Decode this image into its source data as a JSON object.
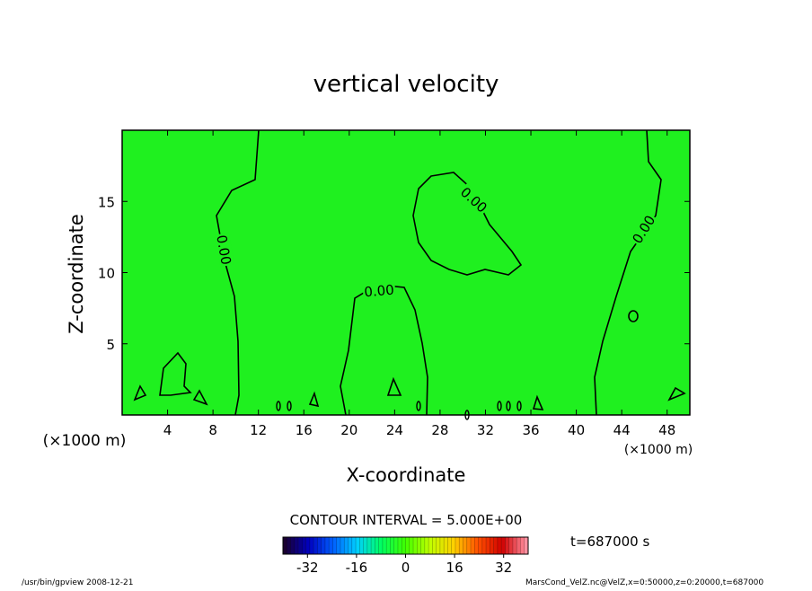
{
  "chart_data": {
    "type": "contour",
    "title": "vertical velocity",
    "xlabel": "X-coordinate",
    "ylabel": "Z-coordinate",
    "xunit": "(×1000 m)",
    "yunit": "(×1000 m)",
    "xlim": [
      0,
      50
    ],
    "xticks": [
      4,
      8,
      12,
      16,
      20,
      24,
      28,
      32,
      36,
      40,
      44,
      48
    ],
    "ylim": [
      0,
      20
    ],
    "yticks": [
      5,
      10,
      15
    ],
    "fill_color": "#1ff01f",
    "contour_levels": [
      0
    ],
    "contour_labels": [
      "0.00"
    ],
    "contour_interval_text": "CONTOUR INTERVAL = 5.000E+00",
    "time_text": "t=687000 s",
    "colorbar": {
      "lim": [
        -40,
        40
      ],
      "ticks": [
        -32,
        -16,
        0,
        16,
        32
      ],
      "colors": [
        "#1a0030",
        "#0000c0",
        "#0060ff",
        "#00d0ff",
        "#00ff60",
        "#40ff00",
        "#c0ff00",
        "#ffd000",
        "#ff5000",
        "#d00000",
        "#ff90a0"
      ]
    },
    "footer_left": "/usr/bin/gpview   2008-12-21",
    "footer_right": "MarsCond_VelZ.nc@VelZ,x=0:50000,z=0:20000,t=687000"
  }
}
